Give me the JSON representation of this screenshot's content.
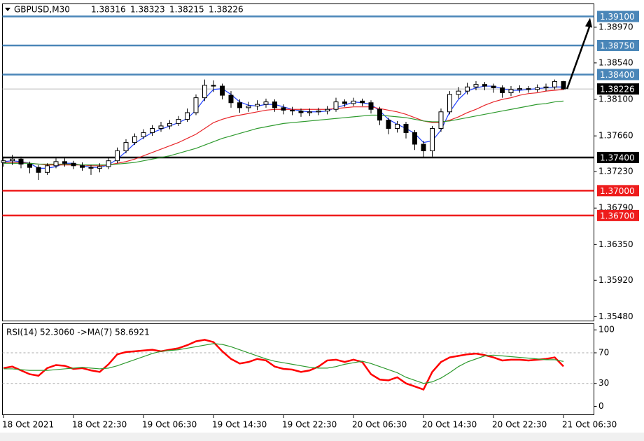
{
  "chart_data": [
    {
      "type": "candlestick",
      "symbol": "GBPUSD,M30",
      "categories": [
        "18 Oct 2021",
        null,
        null,
        null,
        null,
        null,
        null,
        null,
        "18 Oct 22:30",
        null,
        null,
        null,
        null,
        null,
        null,
        null,
        "19 Oct 06:30",
        null,
        null,
        null,
        null,
        null,
        null,
        null,
        "19 Oct 14:30",
        null,
        null,
        null,
        null,
        null,
        null,
        null,
        "19 Oct 22:30",
        null,
        null,
        null,
        null,
        null,
        null,
        null,
        "20 Oct 06:30",
        null,
        null,
        null,
        null,
        null,
        null,
        null,
        "20 Oct 14:30",
        null,
        null,
        null,
        null,
        null,
        null,
        null,
        "20 Oct 22:30",
        null,
        null,
        null,
        null,
        null,
        null,
        null,
        "21 Oct 06:30"
      ],
      "open": [
        1.3734,
        1.3736,
        1.3738,
        1.3732,
        1.3728,
        1.3722,
        1.373,
        1.3735,
        1.3733,
        1.373,
        1.3728,
        1.3727,
        1.3729,
        1.3736,
        1.3748,
        1.3758,
        1.3765,
        1.377,
        1.3775,
        1.3778,
        1.3781,
        1.3786,
        1.3794,
        1.3812,
        1.3827,
        1.3826,
        1.3815,
        1.3806,
        1.38,
        1.3802,
        1.3804,
        1.3807,
        1.38,
        1.3797,
        1.3796,
        1.3794,
        1.3795,
        1.3796,
        1.3798,
        1.3807,
        1.3805,
        1.3808,
        1.3806,
        1.3798,
        1.3785,
        1.3775,
        1.378,
        1.377,
        1.3756,
        1.3748,
        1.3775,
        1.3795,
        1.3816,
        1.382,
        1.3825,
        1.3828,
        1.3826,
        1.3824,
        1.3818,
        1.3822,
        1.3823,
        1.3822,
        1.3824,
        1.3825,
        1.38316
      ],
      "high": [
        1.3741,
        1.3743,
        1.3741,
        1.3735,
        1.3731,
        1.3733,
        1.3739,
        1.3739,
        1.3736,
        1.3734,
        1.3731,
        1.3733,
        1.374,
        1.3752,
        1.3762,
        1.3769,
        1.3774,
        1.3779,
        1.3783,
        1.3785,
        1.379,
        1.3799,
        1.3816,
        1.3834,
        1.3833,
        1.3829,
        1.382,
        1.381,
        1.3807,
        1.3809,
        1.3811,
        1.381,
        1.3804,
        1.3801,
        1.3799,
        1.3799,
        1.38,
        1.3802,
        1.3812,
        1.381,
        1.3812,
        1.3811,
        1.3809,
        1.3801,
        1.3788,
        1.3784,
        1.3783,
        1.3773,
        1.376,
        1.3778,
        1.3799,
        1.382,
        1.3825,
        1.383,
        1.3832,
        1.3831,
        1.3829,
        1.3827,
        1.3826,
        1.3827,
        1.3826,
        1.3828,
        1.3829,
        1.3834,
        1.38323
      ],
      "low": [
        1.3729,
        1.3731,
        1.3727,
        1.3721,
        1.3713,
        1.3719,
        1.3727,
        1.3729,
        1.3726,
        1.3724,
        1.3719,
        1.3722,
        1.3726,
        1.3733,
        1.3745,
        1.3755,
        1.3762,
        1.3766,
        1.3771,
        1.3774,
        1.3778,
        1.3783,
        1.3791,
        1.3808,
        1.3819,
        1.381,
        1.38,
        1.3794,
        1.3795,
        1.3797,
        1.38,
        1.3795,
        1.3792,
        1.3791,
        1.3789,
        1.379,
        1.3791,
        1.3792,
        1.3795,
        1.3801,
        1.3802,
        1.3802,
        1.3793,
        1.3779,
        1.3768,
        1.377,
        1.3763,
        1.3749,
        1.374,
        1.3741,
        1.3771,
        1.3792,
        1.3811,
        1.3816,
        1.3821,
        1.3821,
        1.3818,
        1.3812,
        1.3814,
        1.3818,
        1.3818,
        1.3819,
        1.382,
        1.3822,
        1.38215
      ],
      "close": [
        1.3736,
        1.3738,
        1.3732,
        1.3728,
        1.3722,
        1.373,
        1.3735,
        1.3733,
        1.373,
        1.3728,
        1.3727,
        1.3729,
        1.3736,
        1.3748,
        1.3758,
        1.3765,
        1.377,
        1.3775,
        1.3778,
        1.3781,
        1.3786,
        1.3794,
        1.3812,
        1.3827,
        1.3826,
        1.3815,
        1.3806,
        1.38,
        1.3802,
        1.3804,
        1.3807,
        1.38,
        1.3797,
        1.3796,
        1.3794,
        1.3795,
        1.3796,
        1.3798,
        1.3807,
        1.3805,
        1.3808,
        1.3806,
        1.3798,
        1.3785,
        1.3775,
        1.378,
        1.377,
        1.3756,
        1.3748,
        1.3775,
        1.3795,
        1.3816,
        1.382,
        1.3825,
        1.3828,
        1.3826,
        1.3824,
        1.3818,
        1.3822,
        1.3823,
        1.3822,
        1.3824,
        1.3825,
        1.38316,
        1.38226
      ],
      "up_color": "#ffffff",
      "down_color": "#000000",
      "overlays": [
        {
          "color": "#1f3fff",
          "values": [
            1.3735,
            1.3736,
            1.3735,
            1.3733,
            1.3727,
            1.3727,
            1.3729,
            1.3733,
            1.3733,
            1.373,
            1.3728,
            1.3728,
            1.3731,
            1.3738,
            1.3747,
            1.3757,
            1.3764,
            1.377,
            1.3774,
            1.3778,
            1.3782,
            1.3787,
            1.3797,
            1.3811,
            1.3822,
            1.3823,
            1.3816,
            1.3807,
            1.3803,
            1.3802,
            1.3804,
            1.3804,
            1.3801,
            1.3798,
            1.3796,
            1.3795,
            1.3795,
            1.3796,
            1.38,
            1.3803,
            1.3807,
            1.3806,
            1.3804,
            1.3796,
            1.3786,
            1.378,
            1.3775,
            1.3769,
            1.3758,
            1.376,
            1.3773,
            1.3795,
            1.381,
            1.382,
            1.3824,
            1.3826,
            1.3826,
            1.3823,
            1.3821,
            1.3821,
            1.3822,
            1.3823,
            1.3824,
            1.3825,
            1.3825
          ]
        },
        {
          "color": "#e8262a",
          "values": [
            1.3734,
            1.3734,
            1.3734,
            1.3733,
            1.3732,
            1.3731,
            1.3731,
            1.3731,
            1.3731,
            1.3731,
            1.373,
            1.373,
            1.3731,
            1.3733,
            1.3735,
            1.3738,
            1.3742,
            1.3746,
            1.375,
            1.3754,
            1.3758,
            1.3763,
            1.3768,
            1.3775,
            1.3782,
            1.3786,
            1.3789,
            1.3791,
            1.3793,
            1.3795,
            1.3797,
            1.3798,
            1.3798,
            1.3798,
            1.3798,
            1.3798,
            1.3798,
            1.3798,
            1.3799,
            1.38,
            1.3801,
            1.3801,
            1.3801,
            1.3799,
            1.3797,
            1.3795,
            1.3792,
            1.3788,
            1.3784,
            1.3782,
            1.3782,
            1.3785,
            1.3789,
            1.3794,
            1.3798,
            1.3803,
            1.3807,
            1.381,
            1.3812,
            1.3815,
            1.3817,
            1.3818,
            1.382,
            1.3821,
            1.3822
          ]
        },
        {
          "color": "#2e9a2e",
          "values": [
            1.3733,
            1.3733,
            1.3733,
            1.3733,
            1.3732,
            1.3732,
            1.3732,
            1.3732,
            1.3732,
            1.3731,
            1.3731,
            1.3731,
            1.3731,
            1.3732,
            1.3733,
            1.3734,
            1.3736,
            1.3738,
            1.374,
            1.3742,
            1.3745,
            1.3748,
            1.3751,
            1.3755,
            1.3759,
            1.3763,
            1.3766,
            1.3769,
            1.3772,
            1.3775,
            1.3777,
            1.3779,
            1.3781,
            1.3782,
            1.3783,
            1.3784,
            1.3785,
            1.3786,
            1.3787,
            1.3788,
            1.3789,
            1.379,
            1.3791,
            1.3791,
            1.379,
            1.3789,
            1.3788,
            1.3786,
            1.3784,
            1.3783,
            1.3783,
            1.3784,
            1.3786,
            1.3788,
            1.379,
            1.3792,
            1.3794,
            1.3796,
            1.3798,
            1.38,
            1.3802,
            1.3804,
            1.3805,
            1.3807,
            1.3808
          ]
        }
      ],
      "ylim": [
        1.35429,
        1.39252
      ],
      "yticks": [
        {
          "value": 1.3897,
          "label": "1.38970"
        },
        {
          "value": 1.3854,
          "label": "1.38540"
        },
        {
          "value": 1.381,
          "label": "1.38100"
        },
        {
          "value": 1.3766,
          "label": "1.37660"
        },
        {
          "value": 1.3723,
          "label": "1.37230"
        },
        {
          "value": 1.3679,
          "label": "1.36790"
        },
        {
          "value": 1.3635,
          "label": "1.36350"
        },
        {
          "value": 1.3592,
          "label": "1.35920"
        },
        {
          "value": 1.3548,
          "label": "1.35480"
        }
      ],
      "levels": [
        {
          "value": 1.391,
          "label": "1.39100",
          "color": "#4a86b8"
        },
        {
          "value": 1.3875,
          "label": "1.38750",
          "color": "#4a86b8"
        },
        {
          "value": 1.384,
          "label": "1.38400",
          "color": "#4a86b8"
        },
        {
          "value": 1.374,
          "label": "1.37400",
          "color": "#000000"
        },
        {
          "value": 1.37,
          "label": "1.37000",
          "color": "#ee1c1c"
        },
        {
          "value": 1.367,
          "label": "1.36700",
          "color": "#ee1c1c"
        }
      ]
    },
    {
      "type": "line",
      "indicator_label": "RSI(14) 52.3060  ->MA(7) 58.6921",
      "series": [
        {
          "color": "#ff0000",
          "values": [
            50,
            52,
            47,
            42,
            40,
            50,
            54,
            53,
            49,
            50,
            47,
            45,
            55,
            68,
            71,
            72,
            73,
            74,
            72,
            74,
            76,
            80,
            85,
            87,
            84,
            72,
            62,
            56,
            58,
            62,
            60,
            52,
            49,
            48,
            45,
            47,
            52,
            60,
            61,
            58,
            61,
            58,
            42,
            35,
            34,
            38,
            30,
            26,
            22,
            45,
            58,
            64,
            66,
            68,
            69,
            67,
            64,
            60,
            61,
            61,
            60,
            61,
            62,
            64,
            52.306
          ]
        },
        {
          "color": "#2e9a2e",
          "values": [
            49,
            49,
            48,
            47,
            47,
            47,
            48,
            49,
            50,
            51,
            50,
            49,
            50,
            53,
            57,
            61,
            65,
            69,
            72,
            73,
            74,
            76,
            78,
            80,
            82,
            81,
            78,
            74,
            70,
            66,
            62,
            59,
            57,
            55,
            53,
            51,
            50,
            50,
            52,
            55,
            57,
            59,
            56,
            52,
            48,
            44,
            38,
            34,
            30,
            32,
            37,
            44,
            52,
            58,
            62,
            66,
            67,
            66,
            65,
            64,
            63,
            62,
            61,
            61,
            58.6921
          ]
        }
      ],
      "ylim": [
        -11,
        108
      ],
      "yticks": [
        100,
        70,
        30,
        0
      ],
      "dashed_levels": [
        70,
        30
      ]
    }
  ]
}
